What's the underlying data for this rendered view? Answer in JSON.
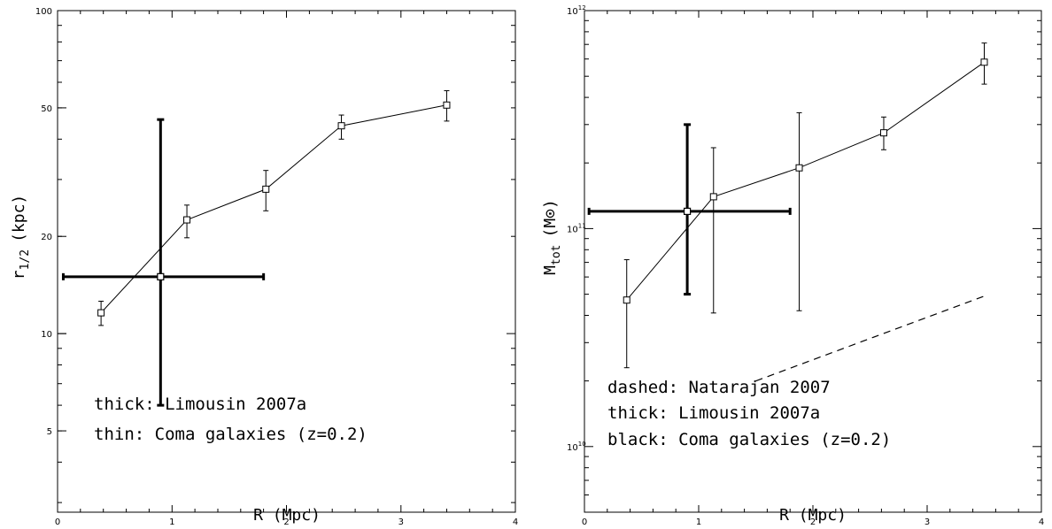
{
  "chart_data": [
    {
      "type": "scatter",
      "title": "",
      "xlabel": "R (Mpc)",
      "ylabel_main": "r",
      "ylabel_sub": "1/2",
      "ylabel_unit": "(kpc)",
      "xlim": [
        0,
        4
      ],
      "ylim": [
        2.8,
        100
      ],
      "yscale": "log",
      "x_ticks": [
        0,
        1,
        2,
        3,
        4
      ],
      "x_tick_labels": [
        "0",
        "1",
        "2",
        "3",
        "4"
      ],
      "y_ticks": [
        5,
        10,
        20,
        50,
        100
      ],
      "y_tick_labels": [
        "5",
        "10",
        "20",
        "50",
        "100"
      ],
      "series": [
        {
          "name": "Coma galaxies (z=0.2)",
          "style": "thin-line-squares",
          "x": [
            0.38,
            1.13,
            1.82,
            2.48,
            3.4
          ],
          "y": [
            11.6,
            22.5,
            28.0,
            44.0,
            51.0
          ],
          "yerr_low": [
            10.6,
            19.8,
            24.0,
            40.0,
            45.5
          ],
          "yerr_high": [
            12.6,
            25.0,
            32.0,
            47.5,
            56.5
          ]
        },
        {
          "name": "Limousin 2007a",
          "style": "thick-cross",
          "x": [
            0.9
          ],
          "y": [
            15.0
          ],
          "xerr": [
            0.05,
            1.8
          ],
          "yerr": [
            6.0,
            46.0
          ]
        }
      ],
      "annotations": [
        "thick: Limousin 2007a",
        "thin: Coma galaxies (z=0.2)"
      ]
    },
    {
      "type": "scatter",
      "title": "",
      "xlabel": "R (Mpc)",
      "ylabel_main": "M",
      "ylabel_sub": "tot",
      "ylabel_unit": "(M",
      "ylabel_unit_close": ")",
      "xlim": [
        0,
        4
      ],
      "ylim": [
        5000000000.0,
        1000000000000.0
      ],
      "yscale": "log",
      "x_ticks": [
        0,
        1,
        2,
        3,
        4
      ],
      "x_tick_labels": [
        "0",
        "1",
        "2",
        "3",
        "4"
      ],
      "y_ticks": [
        10000000000.0,
        100000000000.0,
        1000000000000.0
      ],
      "y_tick_exponents": [
        "10",
        "11",
        "12"
      ],
      "series": [
        {
          "name": "Coma galaxies (z=0.2)",
          "style": "thin-line-squares",
          "x": [
            0.37,
            1.13,
            1.88,
            2.62,
            3.5
          ],
          "y": [
            47000000000.0,
            140000000000.0,
            190000000000.0,
            275000000000.0,
            580000000000.0
          ],
          "yerr_low": [
            23000000000.0,
            41000000000.0,
            42000000000.0,
            230000000000.0,
            460000000000.0
          ],
          "yerr_high": [
            72000000000.0,
            235000000000.0,
            340000000000.0,
            325000000000.0,
            710000000000.0
          ]
        },
        {
          "name": "Limousin 2007a",
          "style": "thick-cross",
          "x": [
            0.9
          ],
          "y": [
            120000000000.0
          ],
          "xerr": [
            0.04,
            1.8
          ],
          "yerr": [
            50000000000.0,
            300000000000.0
          ]
        },
        {
          "name": "Natarajan 2007",
          "style": "dashed",
          "x": [
            1.5,
            3.5
          ],
          "y": [
            20000000000.0,
            49000000000.0
          ]
        }
      ],
      "annotations": [
        "dashed: Natarajan 2007",
        "thick: Limousin 2007a",
        "black: Coma galaxies (z=0.2)"
      ]
    }
  ]
}
